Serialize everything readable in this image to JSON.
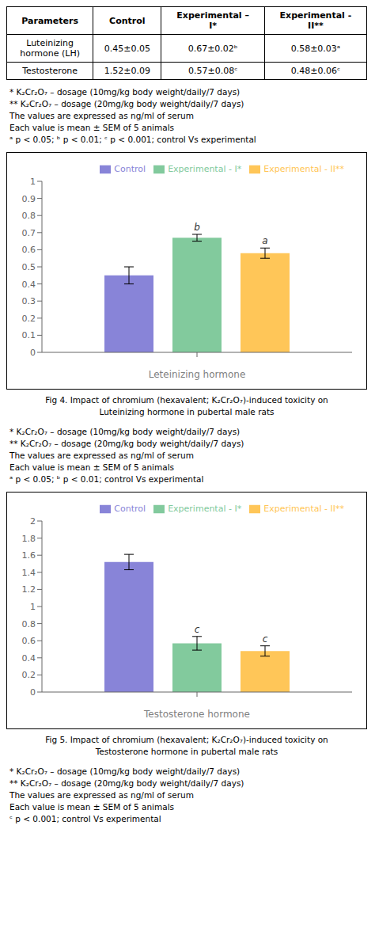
{
  "chart_data": [
    {
      "type": "bar",
      "table": {
        "columns": [
          "Parameters",
          "Control",
          "Experimental –\nI*",
          "Experimental -\nII**"
        ],
        "rows": [
          [
            "Luteinizing\nhormone (LH)",
            "0.45±0.05",
            "0.67±0.02ᵇ",
            "0.58±0.03ᵃ"
          ],
          [
            "Testosterone",
            "1.52±0.09",
            "0.57±0.08ᶜ",
            "0.48±0.06ᶜ"
          ]
        ]
      },
      "notes_before": [
        "* K₂Cr₂O₇ – dosage (10mg/kg body weight/daily/7 days)",
        "** K₂Cr₂O₇ – dosage (20mg/kg body weight/daily/7 days)",
        "The values are expressed as ng/ml of serum",
        "Each value is mean ± SEM of 5 animals",
        "ᵃ p < 0.05; ᵇ p < 0.01; ᶜ p < 0.001; control Vs experimental"
      ],
      "categories": [
        null
      ],
      "xlabel": "Leteinizing hormone",
      "series": [
        {
          "name": "Control",
          "color": "#8884d8",
          "values": [
            0.45
          ],
          "errors": [
            0.05
          ]
        },
        {
          "name": "Experimental - I*",
          "color": "#82ca9d",
          "values": [
            0.67
          ],
          "errors": [
            0.02
          ],
          "annotations": [
            "b"
          ]
        },
        {
          "name": "Experimental - II**",
          "color": "#ffc658",
          "values": [
            0.58
          ],
          "errors": [
            0.03
          ],
          "annotations": [
            "a"
          ]
        }
      ],
      "ylim": [
        0,
        1
      ],
      "yticks": [
        0,
        0.1,
        0.2,
        0.3,
        0.4,
        0.5,
        0.6,
        0.7,
        0.8,
        0.9,
        1
      ],
      "grid": false,
      "legend": "upper right",
      "caption": [
        "Fig 4. Impact of chromium (hexavalent; K₂Cr₂O₇)-induced toxicity on",
        "Luteinizing hormone in pubertal male rats"
      ]
    },
    {
      "type": "bar",
      "notes_before": [
        "* K₂Cr₂O₇ – dosage (10mg/kg body weight/daily/7 days)",
        "** K₂Cr₂O₇ – dosage (20mg/kg body weight/daily/7 days)",
        "The values are expressed as ng/ml of serum",
        "Each value is mean ± SEM of 5 animals",
        "ᵃ p < 0.05; ᵇ p < 0.01; control Vs experimental"
      ],
      "categories": [
        null
      ],
      "xlabel": "Testosterone hormone",
      "series": [
        {
          "name": "Control",
          "color": "#8884d8",
          "values": [
            1.52
          ],
          "errors": [
            0.09
          ]
        },
        {
          "name": "Experimental - I*",
          "color": "#82ca9d",
          "values": [
            0.57
          ],
          "errors": [
            0.08
          ],
          "annotations": [
            "c"
          ]
        },
        {
          "name": "Experimental - II**",
          "color": "#ffc658",
          "values": [
            0.48
          ],
          "errors": [
            0.06
          ],
          "annotations": [
            "c"
          ]
        }
      ],
      "ylim": [
        0,
        2
      ],
      "yticks": [
        0,
        0.2,
        0.4,
        0.6,
        0.8,
        1,
        1.2,
        1.4,
        1.6,
        1.8,
        2
      ],
      "grid": false,
      "legend": "upper right",
      "caption": [
        "Fig 5. Impact of chromium (hexavalent; K₂Cr₂O₇)-induced toxicity on",
        "Testosterone hormone in pubertal male rats"
      ],
      "notes_after": [
        "* K₂Cr₂O₇ – dosage (10mg/kg body weight/daily/7 days)",
        "** K₂Cr₂O₇ – dosage (20mg/kg body weight/daily/7 days)",
        "The values are expressed as ng/ml of serum",
        "Each value is mean ± SEM of 5 animals",
        "ᶜ p < 0.001; control Vs experimental"
      ]
    }
  ]
}
